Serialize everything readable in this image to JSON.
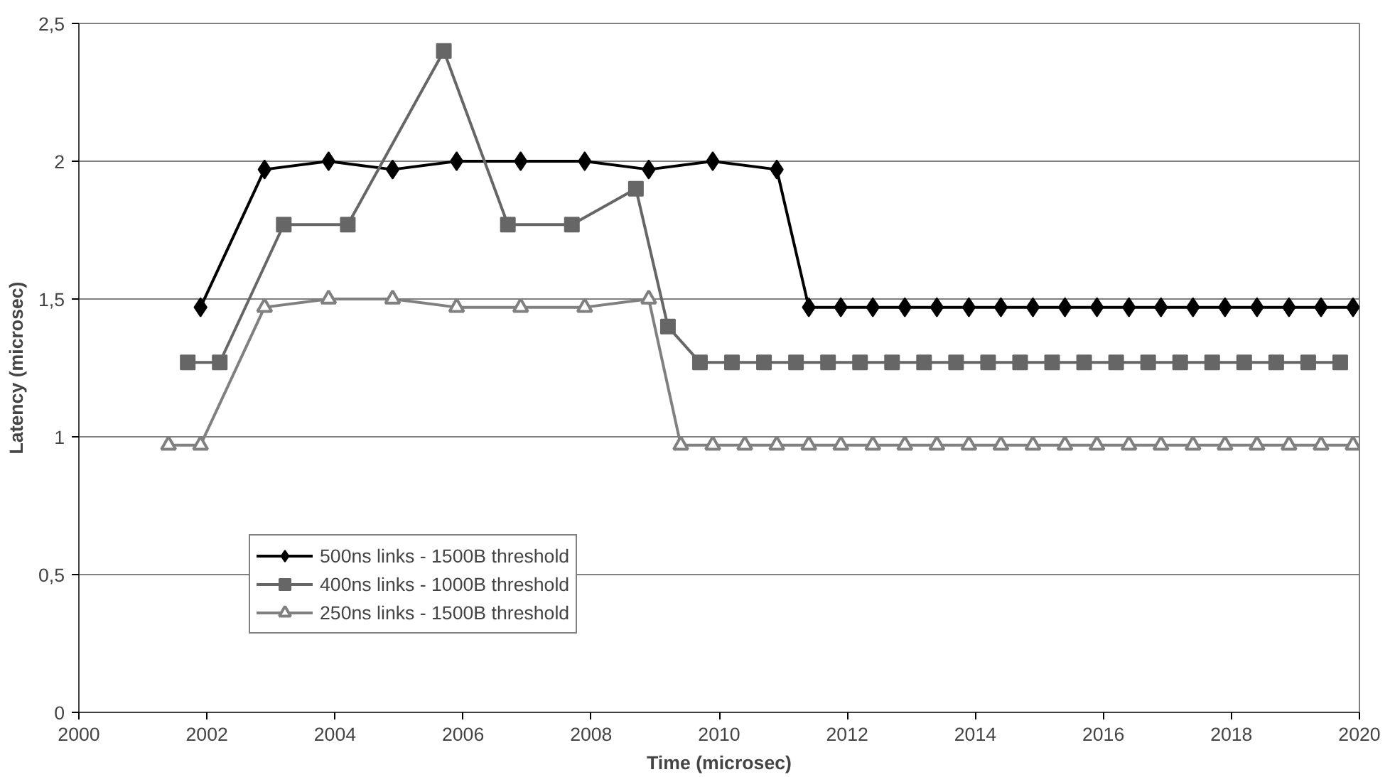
{
  "chart_data": {
    "type": "line",
    "xlabel": "Time (microsec)",
    "ylabel": "Latency (microsec)",
    "xlim": [
      2000,
      2020
    ],
    "xticks": [
      2000,
      2002,
      2004,
      2006,
      2008,
      2010,
      2012,
      2014,
      2016,
      2018,
      2020
    ],
    "ylim": [
      0,
      2.5
    ],
    "yticks": [
      0,
      {
        "value": 0.5,
        "label": "0,5"
      },
      1,
      {
        "value": 1.5,
        "label": "1,5"
      },
      2,
      {
        "value": 2.5,
        "label": "2,5"
      }
    ],
    "grid": "y",
    "legend": "bottom left",
    "series": [
      {
        "name": "500ns links - 1500B threshold",
        "color": "#000000",
        "marker": "diamond",
        "x": [
          2001.9,
          2002.9,
          2003.9,
          2004.9,
          2005.9,
          2006.9,
          2007.9,
          2008.9,
          2009.9,
          2010.9,
          2011.4,
          2011.9,
          2012.4,
          2012.9,
          2013.4,
          2013.9,
          2014.4,
          2014.9,
          2015.4,
          2015.9,
          2016.4,
          2016.9,
          2017.4,
          2017.9,
          2018.4,
          2018.9,
          2019.4,
          2019.9
        ],
        "values": [
          1.47,
          1.97,
          2.0,
          1.97,
          2.0,
          2.0,
          2.0,
          1.97,
          2.0,
          1.97,
          1.47,
          1.47,
          1.47,
          1.47,
          1.47,
          1.47,
          1.47,
          1.47,
          1.47,
          1.47,
          1.47,
          1.47,
          1.47,
          1.47,
          1.47,
          1.47,
          1.47,
          1.47
        ]
      },
      {
        "name": "400ns links - 1000B threshold",
        "color": "#666666",
        "marker": "square",
        "x": [
          2001.7,
          2002.2,
          2003.2,
          2004.2,
          2005.7,
          2006.7,
          2007.7,
          2008.7,
          2009.2,
          2009.7,
          2010.2,
          2010.7,
          2011.2,
          2011.7,
          2012.2,
          2012.7,
          2013.2,
          2013.7,
          2014.2,
          2014.7,
          2015.2,
          2015.7,
          2016.2,
          2016.7,
          2017.2,
          2017.7,
          2018.2,
          2018.7,
          2019.2,
          2019.7
        ],
        "values": [
          1.27,
          1.27,
          1.77,
          1.77,
          2.4,
          1.77,
          1.77,
          1.9,
          1.4,
          1.27,
          1.27,
          1.27,
          1.27,
          1.27,
          1.27,
          1.27,
          1.27,
          1.27,
          1.27,
          1.27,
          1.27,
          1.27,
          1.27,
          1.27,
          1.27,
          1.27,
          1.27,
          1.27,
          1.27,
          1.27
        ]
      },
      {
        "name": "250ns links - 1500B threshold",
        "color": "#808080",
        "marker": "triangle",
        "x": [
          2001.4,
          2001.9,
          2002.9,
          2003.9,
          2004.9,
          2005.9,
          2006.9,
          2007.9,
          2008.9,
          2009.4,
          2009.9,
          2010.4,
          2010.9,
          2011.4,
          2011.9,
          2012.4,
          2012.9,
          2013.4,
          2013.9,
          2014.4,
          2014.9,
          2015.4,
          2015.9,
          2016.4,
          2016.9,
          2017.4,
          2017.9,
          2018.4,
          2018.9,
          2019.4,
          2019.9
        ],
        "values": [
          0.97,
          0.97,
          1.47,
          1.5,
          1.5,
          1.47,
          1.47,
          1.47,
          1.5,
          0.97,
          0.97,
          0.97,
          0.97,
          0.97,
          0.97,
          0.97,
          0.97,
          0.97,
          0.97,
          0.97,
          0.97,
          0.97,
          0.97,
          0.97,
          0.97,
          0.97,
          0.97,
          0.97,
          0.97,
          0.97,
          0.97
        ]
      }
    ]
  }
}
